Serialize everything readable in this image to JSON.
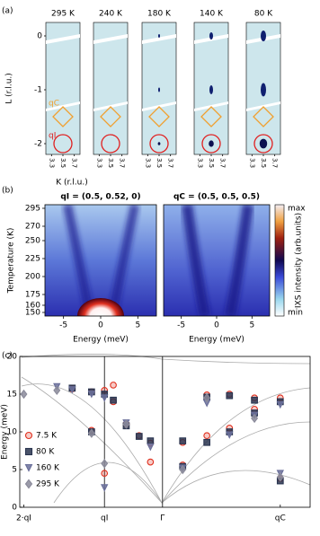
{
  "chart_data": [
    {
      "type": "image",
      "panel": "(a)",
      "titles": [
        "295 K",
        "240 K",
        "180 K",
        "140 K",
        "80 K"
      ],
      "xlabel": "K (r.l.u.)",
      "ylabel": "L (r.l.u.)",
      "xlim": [
        3.2,
        3.8
      ],
      "xticks": [
        3.3,
        3.5,
        3.7
      ],
      "ylim": [
        0.25,
        -2.2
      ],
      "yticks": [
        0,
        -1,
        -2
      ],
      "annotations": [
        "qC",
        "qI"
      ]
    },
    {
      "type": "heatmap",
      "panel": "(b)",
      "titles": [
        "qI = (0.5, 0.52, 0)",
        "qC = (0.5, 0.5, 0.5)"
      ],
      "xlabel": "Energy (meV)",
      "ylabel": "Temperature (K)",
      "xlim": [
        -7.5,
        7.5
      ],
      "xticks": [
        -5,
        0,
        5
      ],
      "ylim": [
        145,
        300
      ],
      "yticks": [
        150,
        160,
        175,
        200,
        225,
        250,
        270,
        295
      ],
      "colorbar_label": "IXS intensity (arb.units)",
      "colorbar_ticks": [
        "max",
        "min"
      ]
    },
    {
      "type": "scatter",
      "panel": "(c)",
      "ylabel": "Energy (meV)",
      "xlim": [
        -0.05,
        3.55
      ],
      "xticks": [
        {
          "value": 0,
          "label": "2·qI"
        },
        {
          "value": 1,
          "label": "qI"
        },
        {
          "value": 1.72,
          "label": "Γ"
        },
        {
          "value": 3.18,
          "label": "qC"
        }
      ],
      "ylim": [
        0,
        20
      ],
      "yticks": [
        0,
        5,
        10,
        15,
        20
      ],
      "legend": "lower left",
      "series": [
        {
          "name": "7.5 K",
          "color": "#e0301e",
          "marker": "circle",
          "x": [
            0.6,
            0.84,
            0.84,
            1.0,
            1.0,
            1.11,
            1.11,
            1.27,
            1.43,
            1.57,
            1.57,
            1.97,
            1.97,
            2.27,
            2.27,
            2.55,
            2.55,
            2.86,
            2.86,
            3.18,
            3.18
          ],
          "values": [
            15.7,
            10.2,
            15.3,
            4.5,
            15.5,
            16.2,
            14.0,
            11.0,
            9.5,
            8.5,
            6.0,
            5.6,
            8.6,
            9.5,
            14.9,
            10.5,
            15.0,
            13.0,
            14.5,
            14.5,
            3.8
          ]
        },
        {
          "name": "80 K",
          "color": "#2a3550",
          "marker": "square",
          "x": [
            0.6,
            0.84,
            0.84,
            1.0,
            1.11,
            1.27,
            1.43,
            1.57,
            1.97,
            1.97,
            2.27,
            2.27,
            2.55,
            2.55,
            2.86,
            2.86,
            3.18,
            3.18
          ],
          "values": [
            15.8,
            10.0,
            15.3,
            15.0,
            14.2,
            10.8,
            9.4,
            8.8,
            5.4,
            8.8,
            8.6,
            14.6,
            10.0,
            14.8,
            12.5,
            14.2,
            14.0,
            3.5
          ]
        },
        {
          "name": "160 K",
          "color": "#6a6f9a",
          "marker": "triangle",
          "x": [
            0.41,
            0.6,
            0.84,
            1.0,
            1.0,
            1.27,
            1.57,
            1.97,
            2.27,
            2.55,
            2.86,
            3.18,
            3.18
          ],
          "values": [
            16.0,
            15.6,
            15.0,
            14.5,
            2.6,
            11.2,
            8.0,
            5.2,
            13.8,
            9.6,
            12.2,
            13.6,
            4.5
          ]
        },
        {
          "name": "295 K",
          "color": "#8a8a9a",
          "marker": "diamond",
          "x": [
            0,
            0.41,
            0.84,
            1.0,
            1.27,
            1.97,
            2.27,
            2.86,
            3.18
          ],
          "values": [
            15.0,
            15.5,
            9.8,
            5.8,
            11.0,
            5.0,
            14.5,
            11.8,
            4.0
          ]
        }
      ]
    }
  ]
}
